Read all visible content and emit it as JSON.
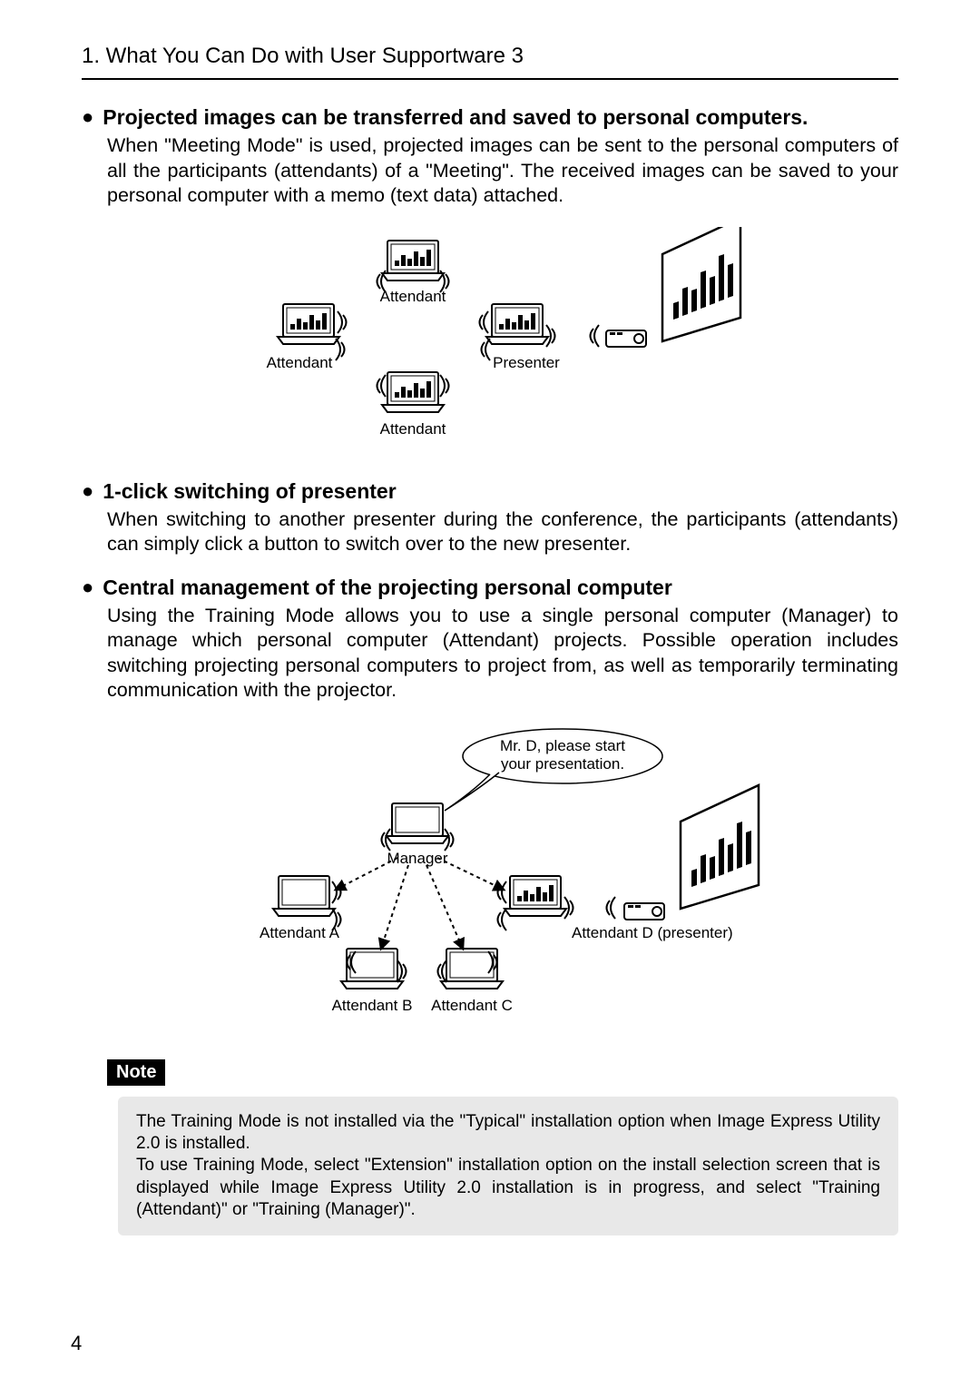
{
  "section_heading": "1. What You Can Do with User Supportware 3",
  "bullets": [
    {
      "title": "Projected images can be transferred and saved to personal computers.",
      "body": "When \"Meeting Mode\" is used, projected images can be sent to the personal computers of all the participants (attendants) of a \"Meeting\".  The received images can be saved to your personal computer with a memo (text data) attached."
    },
    {
      "title": "1-click switching of presenter",
      "body": "When switching to another presenter during the conference, the participants (attendants) can simply click a button to switch over to the new presenter."
    },
    {
      "title": "Central management of the projecting personal computer",
      "body": "Using the Training Mode allows you to use a single personal computer (Manager) to manage which personal computer (Attendant) projects.  Possible operation includes switching projecting personal computers to project from, as well as temporarily terminating communication with the projector."
    }
  ],
  "fig1": {
    "labels": {
      "attendant_top": "Attendant",
      "attendant_left": "Attendant",
      "attendant_bottom": "Attendant",
      "presenter": "Presenter"
    }
  },
  "fig2": {
    "speech_line1": "Mr. D, please start",
    "speech_line2": "your presentation.",
    "labels": {
      "manager": "Manager",
      "attendant_a": "Attendant A",
      "attendant_d": "Attendant D (presenter)",
      "attendant_b": "Attendant B",
      "attendant_c": "Attendant C"
    }
  },
  "note_label": "Note",
  "note_body": "The Training Mode is not installed via the \"Typical\" installation option when Image Express Utility 2.0 is installed.\nTo use Training Mode, select \"Extension\" installation option on the install selection screen that is displayed while Image Express Utility 2.0 installation is in progress, and select \"Training (Attendant)\" or \"Training (Manager)\".",
  "page_number": "4",
  "colors": {
    "text": "#000000",
    "bg": "#ffffff",
    "note_bg": "#e8e8e8"
  }
}
